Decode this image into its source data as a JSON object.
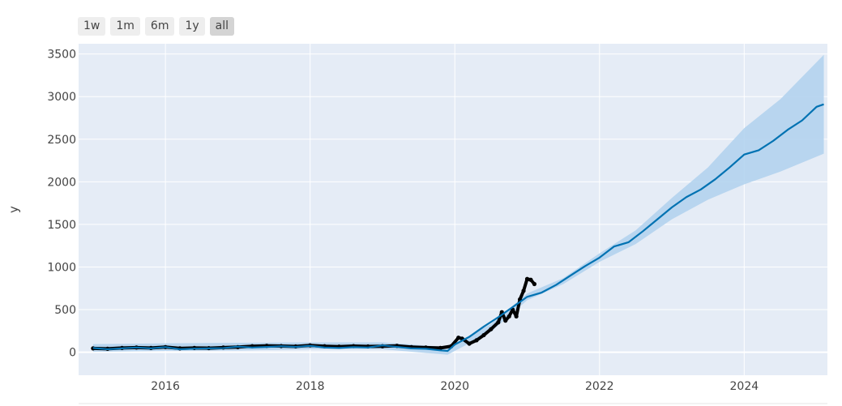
{
  "range_selector": {
    "buttons": [
      {
        "label": "1w",
        "active": false
      },
      {
        "label": "1m",
        "active": false
      },
      {
        "label": "6m",
        "active": false
      },
      {
        "label": "1y",
        "active": false
      },
      {
        "label": "all",
        "active": true
      }
    ]
  },
  "chart_data": {
    "type": "line",
    "title": "",
    "xlabel": "",
    "ylabel": "y",
    "xlim": [
      2014.8,
      2025.15
    ],
    "ylim": [
      -270,
      3620
    ],
    "x_ticks": [
      2016,
      2018,
      2020,
      2022,
      2024
    ],
    "x_tick_labels": [
      "2016",
      "2018",
      "2020",
      "2022",
      "2024"
    ],
    "y_ticks": [
      0,
      500,
      1000,
      1500,
      2000,
      2500,
      3000,
      3500
    ],
    "y_tick_labels": [
      "0",
      "500",
      "1000",
      "1500",
      "2000",
      "2500",
      "3000",
      "3500"
    ],
    "grid": true,
    "colors": {
      "plot_bg": "#e5ecf6",
      "grid": "#ffffff",
      "forecast": "#0072b2",
      "uncertainty": "#b3d3ee",
      "observed": "#000000"
    },
    "series": [
      {
        "role": "observed",
        "x": [
          2015.0,
          2015.2,
          2015.4,
          2015.6,
          2015.8,
          2016.0,
          2016.2,
          2016.4,
          2016.6,
          2016.8,
          2017.0,
          2017.2,
          2017.4,
          2017.6,
          2017.8,
          2018.0,
          2018.2,
          2018.4,
          2018.6,
          2018.8,
          2019.0,
          2019.2,
          2019.4,
          2019.6,
          2019.8,
          2019.95,
          2020.05,
          2020.1,
          2020.2,
          2020.3,
          2020.4,
          2020.5,
          2020.6,
          2020.65,
          2020.7,
          2020.75,
          2020.8,
          2020.85,
          2020.9,
          2020.95,
          2021.0,
          2021.05,
          2021.1
        ],
        "y": [
          45,
          40,
          50,
          55,
          50,
          60,
          45,
          50,
          48,
          55,
          60,
          70,
          75,
          72,
          68,
          80,
          70,
          65,
          72,
          68,
          70,
          75,
          60,
          55,
          50,
          70,
          170,
          160,
          100,
          140,
          200,
          270,
          350,
          470,
          370,
          420,
          500,
          420,
          620,
          720,
          860,
          850,
          800
        ]
      },
      {
        "role": "forecast",
        "x": [
          2015.0,
          2015.2,
          2015.4,
          2015.6,
          2015.8,
          2016.0,
          2016.2,
          2016.4,
          2016.6,
          2016.8,
          2017.0,
          2017.2,
          2017.4,
          2017.6,
          2017.8,
          2018.0,
          2018.2,
          2018.4,
          2018.6,
          2018.8,
          2019.0,
          2019.2,
          2019.4,
          2019.6,
          2019.8,
          2019.9,
          2020.0,
          2020.2,
          2020.4,
          2020.6,
          2020.8,
          2021.0,
          2021.2,
          2021.4,
          2021.6,
          2021.8,
          2022.0,
          2022.2,
          2022.4,
          2022.6,
          2022.8,
          2023.0,
          2023.2,
          2023.4,
          2023.6,
          2023.8,
          2024.0,
          2024.2,
          2024.4,
          2024.6,
          2024.8,
          2025.0,
          2025.1
        ],
        "y": [
          50,
          35,
          45,
          55,
          45,
          60,
          35,
          42,
          45,
          48,
          65,
          55,
          62,
          70,
          62,
          75,
          55,
          50,
          60,
          55,
          80,
          62,
          45,
          40,
          22,
          15,
          90,
          180,
          300,
          410,
          530,
          650,
          700,
          790,
          900,
          1010,
          1110,
          1240,
          1290,
          1420,
          1560,
          1700,
          1820,
          1910,
          2030,
          2170,
          2320,
          2370,
          2480,
          2610,
          2720,
          2880,
          2910
        ]
      },
      {
        "role": "uncertainty-upper",
        "x": [
          2015.0,
          2016.0,
          2017.0,
          2018.0,
          2019.0,
          2019.9,
          2020.5,
          2021.0,
          2021.5,
          2022.0,
          2022.5,
          2023.0,
          2023.5,
          2024.0,
          2024.5,
          2025.1
        ],
        "y": [
          95,
          105,
          110,
          115,
          115,
          60,
          330,
          690,
          870,
          1160,
          1430,
          1810,
          2170,
          2630,
          2970,
          3490
        ]
      },
      {
        "role": "uncertainty-lower",
        "x": [
          2015.0,
          2016.0,
          2017.0,
          2018.0,
          2019.0,
          2019.9,
          2020.5,
          2021.0,
          2021.5,
          2022.0,
          2022.5,
          2023.0,
          2023.5,
          2024.0,
          2024.5,
          2025.1
        ],
        "y": [
          5,
          15,
          20,
          35,
          35,
          -30,
          240,
          610,
          800,
          1060,
          1270,
          1560,
          1790,
          1970,
          2120,
          2330
        ]
      }
    ]
  }
}
